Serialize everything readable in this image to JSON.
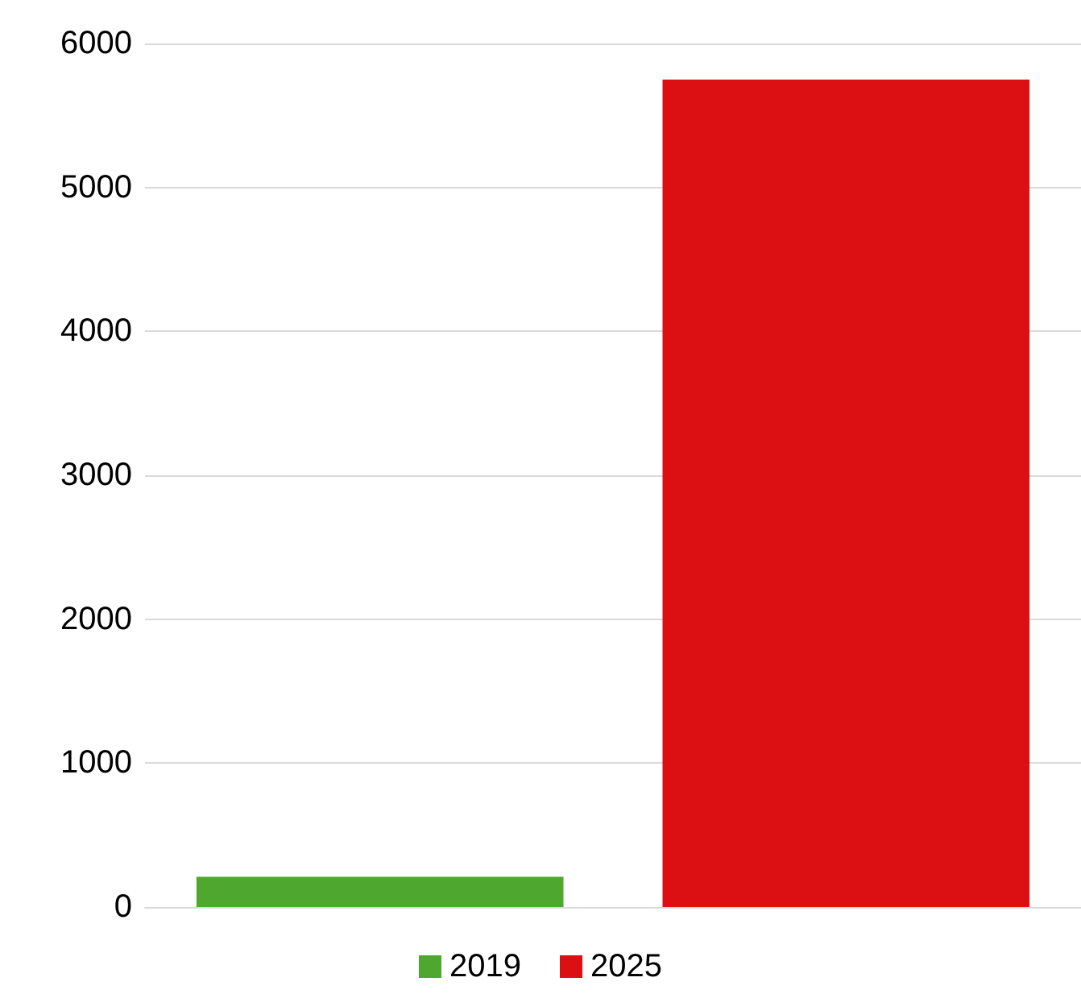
{
  "chart_data": {
    "type": "bar",
    "categories": [
      null
    ],
    "series": [
      {
        "name": "2019",
        "color": "#4ea72e",
        "values": [
          210
        ]
      },
      {
        "name": "2025",
        "color": "#dc0f13",
        "values": [
          5750
        ]
      }
    ],
    "ylim": [
      0,
      6000
    ],
    "yticks": [
      0,
      1000,
      2000,
      3000,
      4000,
      5000,
      6000
    ],
    "grid": "y",
    "legend": "bottom"
  }
}
